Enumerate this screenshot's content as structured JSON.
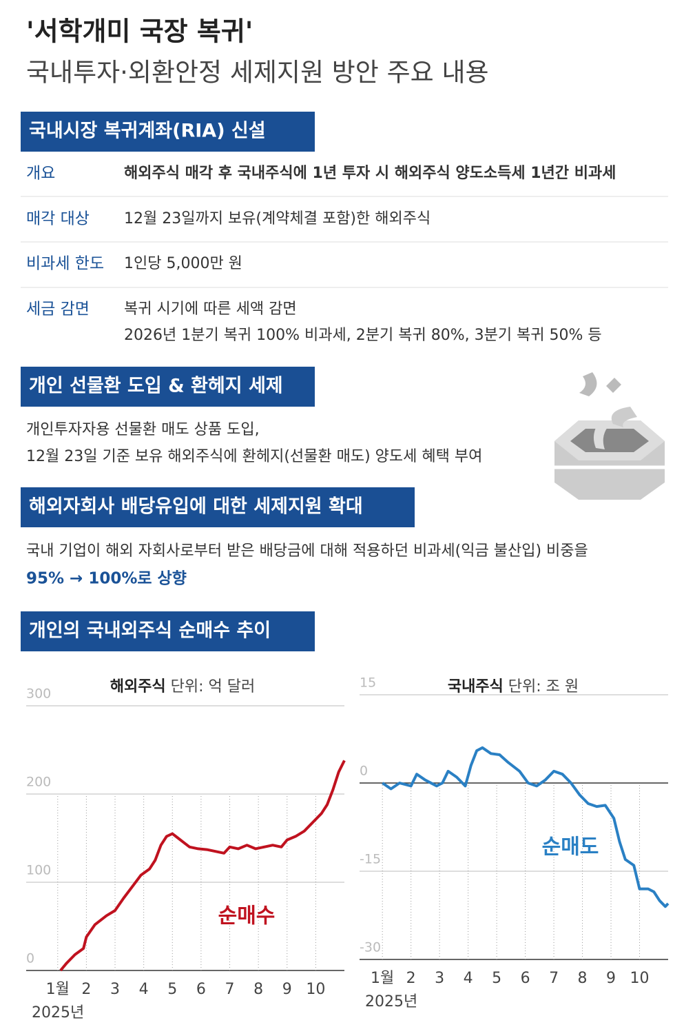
{
  "header": {
    "title": "'서학개미 국장 복귀'",
    "subtitle": "국내투자·외환안정 세제지원 방안 주요 내용"
  },
  "sections": [
    {
      "title": "국내시장 복귀계좌(RIA) 신설",
      "rows": [
        {
          "label": "개요",
          "lines": [
            "해외주식 매각 후 국내주식에 1년 투자 시 해외주식 양도소득세 1년간 비과세"
          ]
        },
        {
          "label": "매각 대상",
          "lines": [
            "12월 23일까지 보유(계약체결 포함)한 해외주식"
          ]
        },
        {
          "label": "비과세 한도",
          "lines": [
            "1인당 5,000만 원"
          ]
        },
        {
          "label": "세금 감면",
          "lines": [
            "복귀 시기에 따른 세액 감면",
            "2026년 1분기 복귀 100% 비과세, 2분기 복귀 80%, 3분기 복귀 50% 등"
          ]
        }
      ]
    },
    {
      "title": "개인 선물환 도입 & 환헤지 세제",
      "lines": [
        "개인투자자용 선물환 매도 상품 도입,",
        "12월 23일 기준 보유 해외주식에 환헤지(선물환 매도) 양도세 혜택 부여"
      ]
    },
    {
      "title": "해외자회사 배당유입에 대한 세제지원 확대",
      "lines": [
        "국내 기업이 해외 자회사로부터 받은 배당금에 대해 적용하던 비과세(익금 불산입) 비중을"
      ],
      "highlight": "95% → 100%로 상향"
    },
    {
      "title": "개인의 국내외주식 순매수 추이"
    }
  ],
  "chart_data": [
    {
      "type": "line",
      "title": "해외주식",
      "unit": "단위: 억 달러",
      "x_note": "2025년",
      "x": [
        1.1,
        1.3,
        1.6,
        1.9,
        2.0,
        2.3,
        2.7,
        3.0,
        3.3,
        3.6,
        3.9,
        4.2,
        4.4,
        4.6,
        4.8,
        5.0,
        5.2,
        5.4,
        5.6,
        5.9,
        6.2,
        6.5,
        6.8,
        7.0,
        7.3,
        7.6,
        7.9,
        8.2,
        8.5,
        8.8,
        9.0,
        9.3,
        9.6,
        9.9,
        10.2,
        10.4,
        10.6,
        10.8,
        11.0
      ],
      "series": [
        {
          "name": "순매수",
          "color": "#c0121f",
          "values": [
            0,
            8,
            18,
            25,
            38,
            52,
            62,
            68,
            82,
            95,
            108,
            115,
            125,
            142,
            152,
            155,
            150,
            145,
            140,
            138,
            137,
            135,
            133,
            140,
            138,
            142,
            138,
            140,
            142,
            140,
            148,
            152,
            158,
            168,
            178,
            188,
            205,
            225,
            238
          ]
        }
      ],
      "xlim": [
        -0.1,
        11.0
      ],
      "xticks": [
        {
          "value": 1,
          "label": "1월"
        },
        2,
        3,
        4,
        5,
        6,
        7,
        8,
        9,
        10
      ],
      "ylim": [
        0,
        300
      ],
      "yticks": [
        0,
        100,
        200,
        300
      ],
      "grid": true
    },
    {
      "type": "line",
      "title": "국내주식",
      "unit": "단위: 조 원",
      "x_note": "2025년",
      "x": [
        1.0,
        1.3,
        1.6,
        2.0,
        2.2,
        2.5,
        2.9,
        3.1,
        3.3,
        3.6,
        3.9,
        4.1,
        4.3,
        4.5,
        4.8,
        5.1,
        5.4,
        5.8,
        6.1,
        6.4,
        6.7,
        7.0,
        7.3,
        7.6,
        7.9,
        8.2,
        8.5,
        8.8,
        9.1,
        9.3,
        9.5,
        9.8,
        10.0,
        10.3,
        10.5,
        10.7,
        10.9,
        11.0
      ],
      "series": [
        {
          "name": "순매도",
          "color": "#2a80c4",
          "values": [
            0,
            -1,
            0,
            -0.5,
            1.5,
            0.5,
            -0.5,
            0,
            2,
            1,
            -0.5,
            3,
            5.5,
            6,
            5,
            4.8,
            3.5,
            2,
            0,
            -0.5,
            0.5,
            2,
            1.5,
            0,
            -2,
            -3.5,
            -4,
            -3.8,
            -6,
            -10,
            -13,
            -14,
            -18,
            -18,
            -18.5,
            -20,
            -21,
            -20.5
          ]
        }
      ],
      "xlim": [
        0.2,
        11.0
      ],
      "xticks": [
        {
          "value": 1,
          "label": "1월"
        },
        2,
        3,
        4,
        5,
        6,
        7,
        8,
        9,
        10
      ],
      "ylim": [
        -30,
        15
      ],
      "yticks": [
        -30,
        -15,
        0,
        15
      ],
      "grid": true
    }
  ]
}
